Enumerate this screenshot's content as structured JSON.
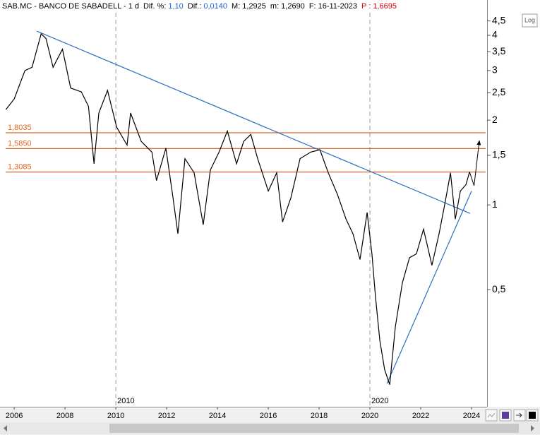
{
  "header": {
    "symbol": "SAB.MC - BANCO DE SABADELL - 1 d",
    "fields": [
      {
        "label": "Dif. %:",
        "value": "1,10"
      },
      {
        "label": "Dif.:",
        "value": "0,0140"
      },
      {
        "label": "M:",
        "value": "1,2925"
      },
      {
        "label": "m:",
        "value": "1,2690"
      },
      {
        "label": "F:",
        "value": "16-11-2023"
      }
    ],
    "price_label": "P :",
    "price": "1,6695"
  },
  "log_button": "Log",
  "chart_data": {
    "type": "line",
    "log_scale": true,
    "xlim": [
      2005.44,
      2024.61
    ],
    "ylim": [
      0.192,
      5.34
    ],
    "xticks": [
      2006,
      2008,
      2010,
      2012,
      2014,
      2016,
      2018,
      2020,
      2022,
      2024
    ],
    "yticks": [
      {
        "value": 0.5,
        "label": "0,5"
      },
      1,
      {
        "value": 1.5,
        "label": "1,5"
      },
      2,
      {
        "value": 2.5,
        "label": "2,5"
      },
      3,
      {
        "value": 3.5,
        "label": "3,5"
      },
      4,
      {
        "value": 4.5,
        "label": "4,5"
      }
    ],
    "year_markers": [
      2010,
      2020
    ],
    "color": "#000000",
    "x": [
      2005.67,
      2006,
      2006.42,
      2006.7,
      2007.06,
      2007.25,
      2007.53,
      2007.9,
      2008.22,
      2008.64,
      2008.92,
      2009.14,
      2009.33,
      2009.67,
      2010.03,
      2010.44,
      2010.58,
      2011.0,
      2011.42,
      2011.6,
      2011.97,
      2012.25,
      2012.44,
      2012.72,
      2013.08,
      2013.44,
      2013.72,
      2014.06,
      2014.39,
      2014.75,
      2015.03,
      2015.31,
      2015.58,
      2016.0,
      2016.33,
      2016.56,
      2016.89,
      2017.25,
      2017.67,
      2018.03,
      2018.36,
      2018.72,
      2019.06,
      2019.33,
      2019.61,
      2019.89,
      2020.08,
      2020.22,
      2020.39,
      2020.58,
      2020.78,
      2021.0,
      2021.28,
      2021.56,
      2021.83,
      2022.11,
      2022.44,
      2022.72,
      2022.94,
      2023.17,
      2023.36,
      2023.56,
      2023.78,
      2023.92
    ],
    "values": [
      2.18,
      2.38,
      3.0,
      3.08,
      4.05,
      3.9,
      3.08,
      3.57,
      2.6,
      2.52,
      2.24,
      1.4,
      2.12,
      2.55,
      1.89,
      1.63,
      2.12,
      1.68,
      1.54,
      1.22,
      1.59,
      1.06,
      0.79,
      1.46,
      1.3,
      0.85,
      1.33,
      1.54,
      1.83,
      1.4,
      1.68,
      1.78,
      1.46,
      1.12,
      1.3,
      0.87,
      1.06,
      1.46,
      1.54,
      1.57,
      1.3,
      1.09,
      0.89,
      0.79,
      0.64,
      0.94,
      0.67,
      0.47,
      0.33,
      0.26,
      0.23,
      0.37,
      0.53,
      0.65,
      0.67,
      0.82,
      0.61,
      0.79,
      1.0,
      1.3,
      0.89,
      1.12,
      1.18,
      1.31
    ],
    "levels": [
      {
        "value": 1.8035,
        "label": "1,8035"
      },
      {
        "value": 1.585,
        "label": "1,5850"
      },
      {
        "value": 1.3085,
        "label": "1,3085"
      }
    ],
    "level_color": "#e2641e",
    "trendlines": {
      "color": "#2a6fc0",
      "lines": [
        {
          "x": [
            2006.89,
            2023.94
          ],
          "values": [
            4.14,
            0.933
          ]
        },
        {
          "x": [
            2020.67,
            2024.0
          ],
          "values": [
            0.232,
            1.12
          ]
        }
      ]
    },
    "projection": {
      "x": [
        2023.92,
        2024.1,
        2024.3
      ],
      "values": [
        1.31,
        1.17,
        1.6695
      ]
    }
  }
}
